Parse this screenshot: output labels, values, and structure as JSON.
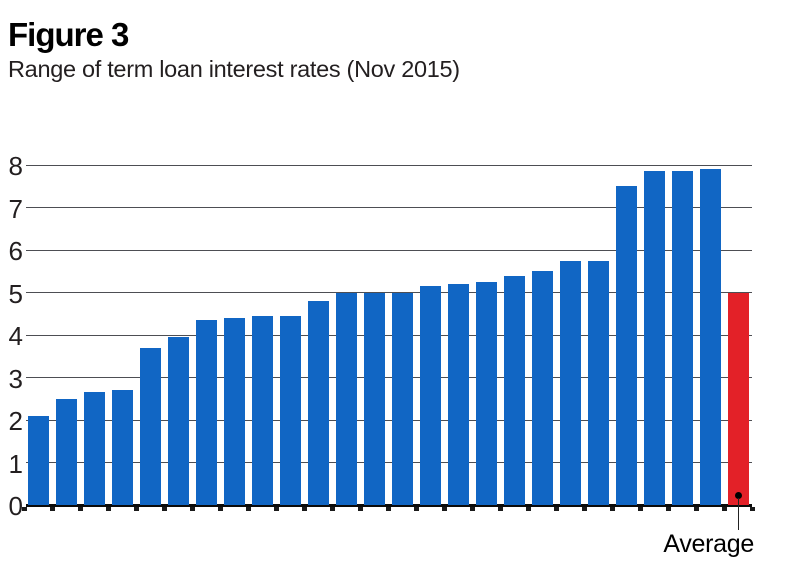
{
  "header": {
    "figure_label": "Figure 3",
    "subtitle": "Range of term loan interest rates (Nov 2015)"
  },
  "chart_data": {
    "type": "bar",
    "title": "Figure 3",
    "subtitle": "Range of term loan interest rates (Nov 2015)",
    "xlabel": "",
    "ylabel": "",
    "ylim": [
      0,
      8
    ],
    "yticks": [
      0,
      1,
      2,
      3,
      4,
      5,
      6,
      7,
      8
    ],
    "grid": true,
    "legend_position": "none",
    "values": [
      2.1,
      2.5,
      2.65,
      2.7,
      3.7,
      3.95,
      4.35,
      4.4,
      4.45,
      4.45,
      4.8,
      5.0,
      5.0,
      5.0,
      5.15,
      5.2,
      5.25,
      5.4,
      5.5,
      5.75,
      5.75,
      7.5,
      7.85,
      7.85,
      7.9,
      5.0
    ],
    "average_bar_index": 25,
    "annotation": {
      "label": "Average",
      "value": 5.0
    },
    "colors": {
      "bar": "#1166c4",
      "average_bar": "#e32128",
      "gridline": "#4d4e53",
      "axis_text": "#231f20",
      "annotation_marker": "#000000"
    }
  }
}
